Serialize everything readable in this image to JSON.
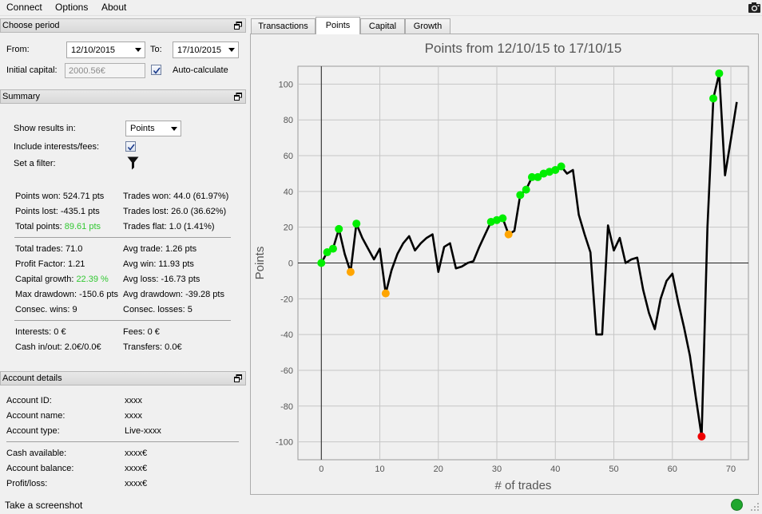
{
  "menu": {
    "items": [
      "Connect",
      "Options",
      "About"
    ]
  },
  "choose_period": {
    "title": "Choose period",
    "from_label": "From:",
    "from_value": "12/10/2015",
    "to_label": "To:",
    "to_value": "17/10/2015",
    "initial_capital_label": "Initial capital:",
    "initial_capital_value": "2000.56€",
    "auto_calculate_label": "Auto-calculate",
    "auto_calculate_checked": true
  },
  "summary": {
    "title": "Summary",
    "show_results_label": "Show results in:",
    "show_results_value": "Points",
    "include_interests_label": "Include interests/fees:",
    "include_interests_checked": true,
    "set_filter_label": "Set a filter:",
    "left_block1": [
      "Points won: 524.71 pts",
      "Points lost: -435.1 pts"
    ],
    "total_points_label": "Total points: ",
    "total_points_value": "89.61 pts",
    "right_block1": [
      "Trades won: 44.0 (61.97%)",
      "Trades lost: 26.0 (36.62%)",
      "Trades flat: 1.0 (1.41%)"
    ],
    "total_trades": "Total trades: 71.0",
    "profit_factor": "Profit Factor: 1.21",
    "capital_growth_label": "Capital growth: ",
    "capital_growth_value": "22.39 %",
    "max_drawdown": "Max drawdown: -150.6 pts",
    "consec_wins": "Consec. wins: 9",
    "right_block2": [
      "Avg trade: 1.26 pts",
      "Avg win: 11.93 pts",
      "Avg loss: -16.73 pts",
      "Avg drawdown: -39.28 pts",
      "Consec. losses: 5"
    ],
    "interests": "Interests: 0 €",
    "cash_inout": "Cash in/out: 2.0€/0.0€",
    "fees": "Fees: 0 €",
    "transfers": "Transfers: 0.0€"
  },
  "account_details": {
    "title": "Account details",
    "rows1": [
      {
        "label": "Account ID:",
        "value": "xxxx"
      },
      {
        "label": "Account name:",
        "value": "xxxx"
      },
      {
        "label": "Account type:",
        "value": "Live-xxxx"
      }
    ],
    "rows2": [
      {
        "label": "Cash available:",
        "value": "xxxx€"
      },
      {
        "label": "Account balance:",
        "value": "xxxx€"
      },
      {
        "label": "Profit/loss:",
        "value": "xxxx€"
      }
    ]
  },
  "status": {
    "text": "Take a screenshot"
  },
  "tabs": [
    "Transactions",
    "Points",
    "Capital",
    "Growth"
  ],
  "active_tab": 1,
  "colors": {
    "win_marker": "#00ee00",
    "loss_marker": "#ffa500",
    "min_marker": "#ee0000",
    "line": "#000000",
    "highlight_text": "#31c831"
  },
  "chart_data": {
    "type": "line",
    "title": "Points from 12/10/15 to 17/10/15",
    "xlabel": "# of trades",
    "ylabel": "Points",
    "xlim": [
      -4,
      73
    ],
    "ylim": [
      -110,
      110
    ],
    "xticks": [
      0,
      10,
      20,
      30,
      40,
      50,
      60,
      70
    ],
    "yticks": [
      -100,
      -80,
      -60,
      -40,
      -20,
      0,
      20,
      40,
      60,
      80,
      100
    ],
    "grid": true,
    "x": [
      0,
      1,
      2,
      3,
      4,
      5,
      6,
      7,
      8,
      9,
      10,
      11,
      12,
      13,
      14,
      15,
      16,
      17,
      18,
      19,
      20,
      21,
      22,
      23,
      24,
      25,
      26,
      27,
      28,
      29,
      30,
      31,
      32,
      33,
      34,
      35,
      36,
      37,
      38,
      39,
      40,
      41,
      42,
      43,
      44,
      45,
      46,
      47,
      48,
      49,
      50,
      51,
      52,
      53,
      54,
      55,
      56,
      57,
      58,
      59,
      60,
      61,
      62,
      63,
      64,
      65,
      66,
      67,
      68,
      69,
      70,
      71
    ],
    "y": [
      0,
      6,
      8,
      19,
      5,
      -5,
      22,
      14,
      8,
      2,
      8,
      -17,
      -4,
      5,
      11,
      15,
      7,
      11,
      14,
      16,
      -5,
      9,
      11,
      -3,
      -2,
      0,
      1,
      9,
      16,
      23,
      24,
      25,
      16,
      18,
      38,
      41,
      48,
      48,
      50,
      51,
      52,
      54,
      50,
      52,
      27,
      16,
      6,
      -40,
      -40,
      21,
      7,
      14,
      0,
      2,
      3,
      -15,
      -28,
      -37,
      -20,
      -10,
      -6,
      -22,
      -36,
      -52,
      -75,
      -97,
      20,
      92,
      106,
      49,
      69,
      90
    ],
    "series": [
      {
        "name": "",
        "values": "see y"
      }
    ],
    "markers": {
      "win_idx": [
        0,
        1,
        2,
        3,
        6,
        29,
        30,
        31,
        34,
        35,
        36,
        37,
        38,
        39,
        40,
        41,
        67,
        68
      ],
      "loss_idx": [
        5,
        11,
        32
      ],
      "min_idx": [
        65
      ]
    }
  }
}
